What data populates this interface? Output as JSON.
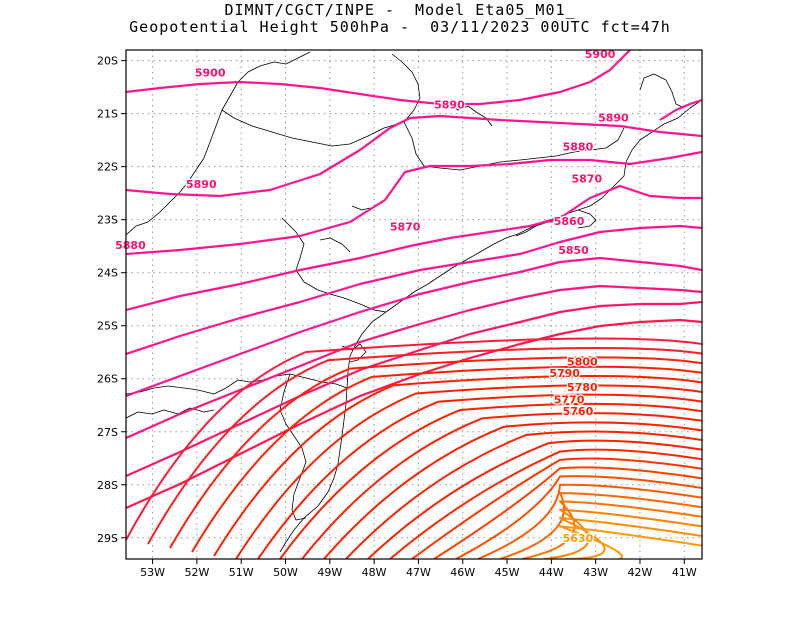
{
  "title": {
    "line1": "DIMNT/CGCT/INPE -  Model Eta05_M01_",
    "line2": "Geopotential Height 500hPa -  03/11/2023 00UTC fct=47h"
  },
  "axes": {
    "lat_labels": [
      "20S",
      "21S",
      "22S",
      "23S",
      "24S",
      "25S",
      "26S",
      "27S",
      "28S",
      "29S"
    ],
    "lon_labels": [
      "53W",
      "52W",
      "51W",
      "50W",
      "49W",
      "48W",
      "47W",
      "46W",
      "45W",
      "44W",
      "43W",
      "42W",
      "41W"
    ],
    "lat_values": [
      -20,
      -21,
      -22,
      -23,
      -24,
      -25,
      -26,
      -27,
      -28,
      -29
    ],
    "lon_values": [
      -53,
      -52,
      -51,
      -50,
      -49,
      -48,
      -47,
      -46,
      -45,
      -44,
      -43,
      -42,
      -41
    ],
    "lat_range": [
      -29.4,
      -19.8
    ],
    "lon_range": [
      -53.6,
      -40.6
    ]
  },
  "contour_labels": [
    {
      "text": "5900",
      "lon": -51.7,
      "lat": -20.3
    },
    {
      "text": "5900",
      "lon": -42.9,
      "lat": -19.95
    },
    {
      "text": "5890",
      "lon": -46.3,
      "lat": -20.9
    },
    {
      "text": "5890",
      "lon": -42.6,
      "lat": -21.15
    },
    {
      "text": "5890",
      "lon": -51.9,
      "lat": -22.4
    },
    {
      "text": "5880",
      "lon": -43.4,
      "lat": -21.7
    },
    {
      "text": "5880",
      "lon": -53.5,
      "lat": -23.55
    },
    {
      "text": "5870",
      "lon": -43.2,
      "lat": -22.3
    },
    {
      "text": "5870",
      "lon": -47.3,
      "lat": -23.2
    },
    {
      "text": "5860",
      "lon": -43.6,
      "lat": -23.1
    },
    {
      "text": "5850",
      "lon": -43.5,
      "lat": -23.65
    },
    {
      "text": "5800",
      "lon": -43.3,
      "lat": -25.75
    },
    {
      "text": "5790",
      "lon": -43.7,
      "lat": -25.97
    },
    {
      "text": "5780",
      "lon": -43.3,
      "lat": -26.23
    },
    {
      "text": "5770",
      "lon": -43.6,
      "lat": -26.47
    },
    {
      "text": "5760",
      "lon": -43.4,
      "lat": -26.68
    },
    {
      "text": "5630",
      "lon": -43.4,
      "lat": -29.08
    }
  ],
  "legend_colors": {
    "high": "#ff1493",
    "mid": "#ff2000",
    "low": "#ff9a00",
    "coast": "#000000",
    "grid": "#9a9a9a"
  }
}
